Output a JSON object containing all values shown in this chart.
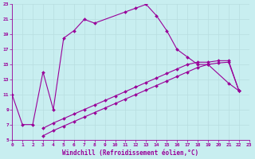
{
  "xlabel": "Windchill (Refroidissement éolien,°C)",
  "xlim": [
    0,
    23
  ],
  "ylim": [
    5,
    23
  ],
  "xticks": [
    0,
    1,
    2,
    3,
    4,
    5,
    6,
    7,
    8,
    9,
    10,
    11,
    12,
    13,
    14,
    15,
    16,
    17,
    18,
    19,
    20,
    21,
    22,
    23
  ],
  "yticks": [
    5,
    7,
    9,
    11,
    13,
    15,
    17,
    19,
    21,
    23
  ],
  "bg_color": "#c8eef0",
  "line_color": "#990099",
  "grid_color": "#b8dde0",
  "curve1_x": [
    0,
    1,
    2,
    3,
    4,
    5,
    6,
    7,
    8,
    11,
    12,
    13,
    14,
    15,
    16,
    17,
    18,
    19,
    21,
    22
  ],
  "curve1_y": [
    11,
    7,
    7,
    14,
    9,
    18.5,
    19.5,
    21,
    20.5,
    22,
    22.5,
    23,
    21.5,
    19.5,
    17,
    16,
    15,
    15,
    12.5,
    11.5
  ],
  "curve2_x": [
    3,
    4,
    5,
    6,
    7,
    8,
    9,
    10,
    11,
    12,
    13,
    14,
    15,
    16,
    17,
    18,
    19,
    20,
    21,
    22
  ],
  "curve2_y": [
    5.5,
    6.2,
    6.8,
    7.4,
    8.0,
    8.6,
    9.2,
    9.8,
    10.4,
    11.0,
    11.6,
    12.2,
    12.8,
    13.4,
    14.0,
    14.6,
    15.0,
    15.2,
    15.3,
    11.5
  ],
  "curve3_x": [
    3,
    4,
    5,
    6,
    7,
    8,
    9,
    10,
    11,
    12,
    13,
    14,
    15,
    16,
    17,
    18,
    19,
    20,
    21,
    22
  ],
  "curve3_y": [
    6.5,
    7.2,
    7.8,
    8.4,
    9.0,
    9.6,
    10.2,
    10.8,
    11.4,
    12.0,
    12.6,
    13.2,
    13.8,
    14.4,
    15.0,
    15.3,
    15.3,
    15.5,
    15.5,
    11.5
  ],
  "xlabel_fontsize": 5.5,
  "tick_fontsize": 4.5
}
